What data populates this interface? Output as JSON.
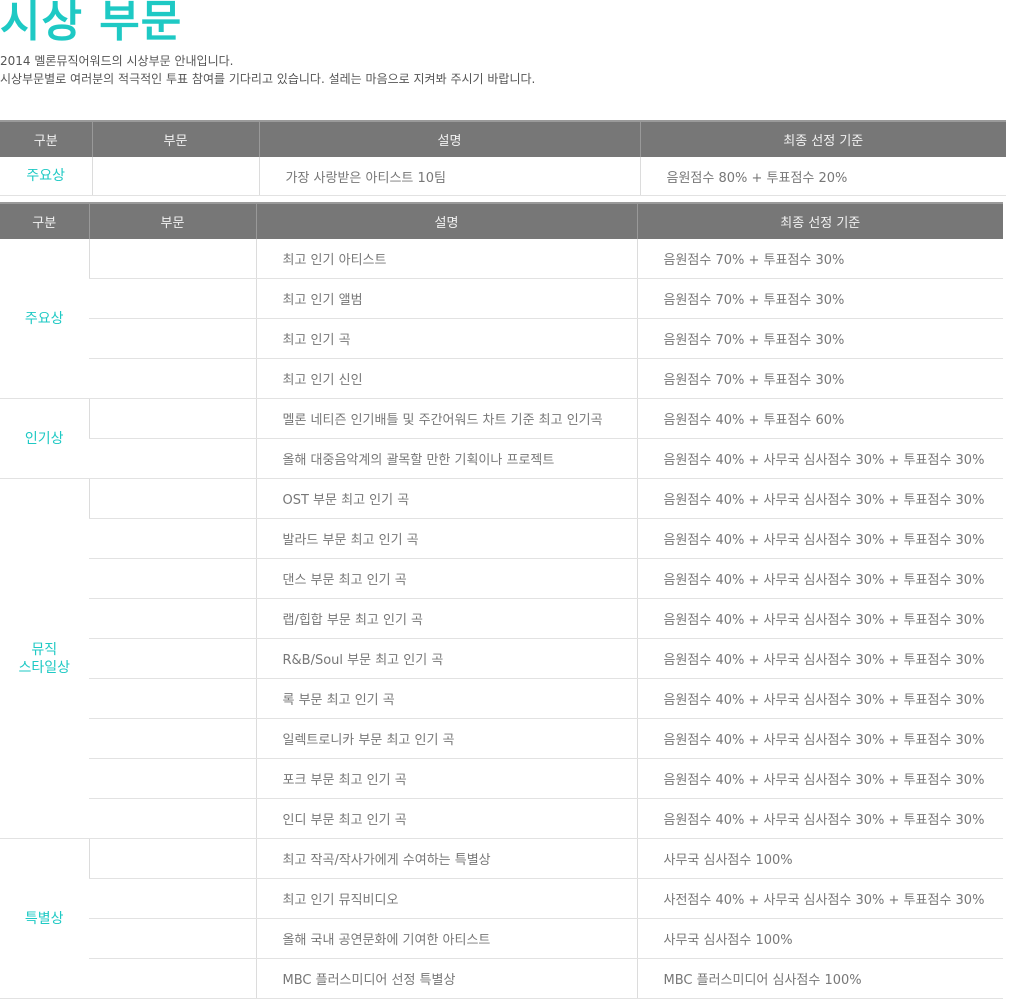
{
  "page": {
    "title": "시상 부문",
    "intro_line1": "2014 멜론뮤직어워드의 시상부문 안내입니다.",
    "intro_line2": "시상부문별로 여러분의 적극적인 투표 참여를 기다리고 있습니다. 설레는 마음으로 지켜봐 주시기 바랍니다."
  },
  "table_header": {
    "col_category": "구분",
    "col_section": "부문",
    "col_description": "설명",
    "col_criteria": "최종 선정 기준"
  },
  "table1": {
    "category": "주요상",
    "section": "",
    "description": "가장 사랑받은 아티스트 10팀",
    "criteria": "음원점수 80% + 투표점수 20%"
  },
  "table2": {
    "groups": [
      {
        "category": "주요상",
        "rows": [
          {
            "section": "",
            "description": "최고 인기 아티스트",
            "criteria": "음원점수 70% + 투표점수 30%"
          },
          {
            "section": "",
            "description": "최고 인기 앨범",
            "criteria": "음원점수 70% + 투표점수 30%"
          },
          {
            "section": "",
            "description": "최고 인기 곡",
            "criteria": "음원점수 70% + 투표점수 30%"
          },
          {
            "section": "",
            "description": "최고 인기 신인",
            "criteria": "음원점수 70% + 투표점수 30%"
          }
        ]
      },
      {
        "category": "인기상",
        "rows": [
          {
            "section": "",
            "description": "멜론 네티즌 인기배틀 및 주간어워드 차트 기준 최고 인기곡",
            "criteria": "음원점수 40% + 투표점수 60%"
          },
          {
            "section": "",
            "description": "올해 대중음악계의 괄목할 만한 기획이나 프로젝트",
            "criteria": "음원점수 40% + 사무국 심사점수 30% + 투표점수 30%"
          }
        ]
      },
      {
        "category": "뮤직\n스타일상",
        "rows": [
          {
            "section": "",
            "description": "OST 부문 최고 인기 곡",
            "criteria": "음원점수 40% + 사무국 심사점수 30% + 투표점수 30%"
          },
          {
            "section": "",
            "description": "발라드 부문 최고 인기 곡",
            "criteria": "음원점수 40% + 사무국 심사점수 30% + 투표점수 30%"
          },
          {
            "section": "",
            "description": "댄스 부문 최고 인기 곡",
            "criteria": "음원점수 40% + 사무국 심사점수 30% + 투표점수 30%"
          },
          {
            "section": "",
            "description": "랩/힙합 부문 최고 인기 곡",
            "criteria": "음원점수 40% + 사무국 심사점수 30% + 투표점수 30%"
          },
          {
            "section": "",
            "description": "R&B/Soul 부문 최고 인기 곡",
            "criteria": "음원점수 40% + 사무국 심사점수 30% + 투표점수 30%"
          },
          {
            "section": "",
            "description": "록 부문 최고 인기 곡",
            "criteria": "음원점수 40% + 사무국 심사점수 30% + 투표점수 30%"
          },
          {
            "section": "",
            "description": "일렉트로니카 부문 최고 인기 곡",
            "criteria": "음원점수 40% + 사무국 심사점수 30% + 투표점수 30%"
          },
          {
            "section": "",
            "description": "포크 부문 최고 인기 곡",
            "criteria": "음원점수 40% + 사무국 심사점수 30% + 투표점수 30%"
          },
          {
            "section": "",
            "description": "인디 부문 최고 인기 곡",
            "criteria": "음원점수 40% + 사무국 심사점수 30% + 투표점수 30%"
          }
        ]
      },
      {
        "category": "특별상",
        "rows": [
          {
            "section": "",
            "description": "최고 작곡/작사가에게 수여하는 특별상",
            "criteria": "사무국 심사점수 100%"
          },
          {
            "section": "",
            "description": "최고 인기 뮤직비디오",
            "criteria": "사전점수 40% + 사무국 심사점수 30% + 투표점수 30%"
          },
          {
            "section": "",
            "description": "올해 국내 공연문화에 기여한 아티스트",
            "criteria": "사무국 심사점수 100%"
          },
          {
            "section": "",
            "description": "MBC 플러스미디어 선정 특별상",
            "criteria": "MBC 플러스미디어 심사점수 100%"
          }
        ]
      }
    ]
  },
  "colors": {
    "accent": "#1ec9c4",
    "header_bg": "#777777",
    "text": "#777777"
  }
}
